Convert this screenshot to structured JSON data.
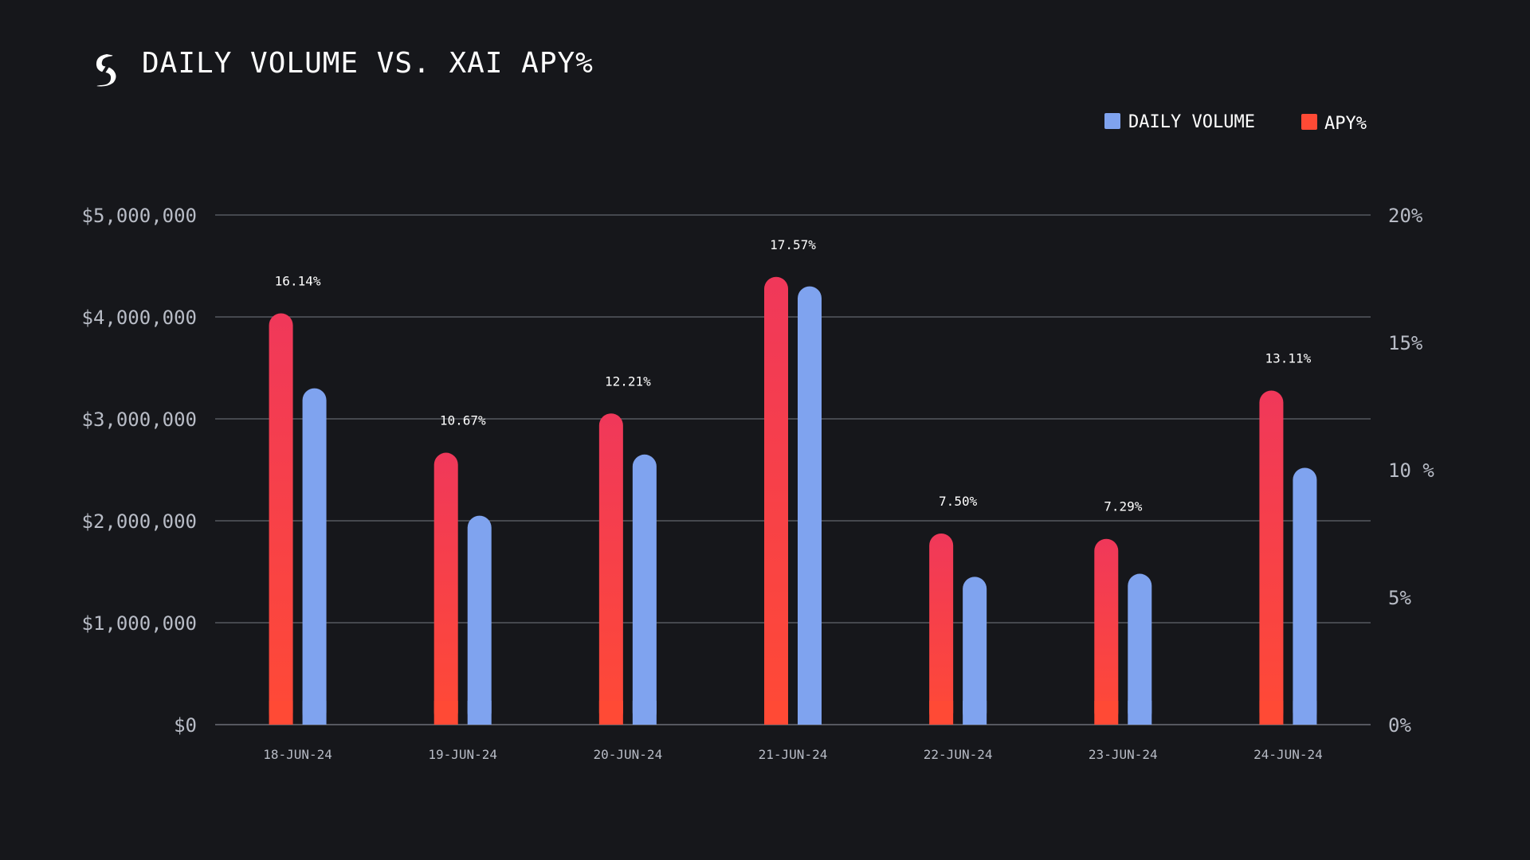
{
  "chart_data": {
    "type": "bar",
    "title": "DAILY VOLUME VS. XAI APY%",
    "categories": [
      "18-JUN-24",
      "19-JUN-24",
      "20-JUN-24",
      "21-JUN-24",
      "22-JUN-24",
      "23-JUN-24",
      "24-JUN-24"
    ],
    "series": [
      {
        "name": "APY%",
        "axis": "right",
        "color": "#f0385a",
        "color_bottom": "#ff4a35",
        "values": [
          16.14,
          10.67,
          12.21,
          17.57,
          7.5,
          7.29,
          13.11
        ],
        "data_labels": [
          "16.14%",
          "10.67%",
          "12.21%",
          "17.57%",
          "7.50%",
          "7.29%",
          "13.11%"
        ]
      },
      {
        "name": "DAILY VOLUME",
        "axis": "left",
        "color": "#7fa3ef",
        "values": [
          3300000,
          2050000,
          2650000,
          4300000,
          1450000,
          1480000,
          2520000
        ]
      }
    ],
    "y_left": {
      "ylim": [
        0,
        5000000
      ],
      "ticks": [
        0,
        1000000,
        2000000,
        3000000,
        4000000,
        5000000
      ],
      "tick_labels": [
        "$0",
        "$1,000,000",
        "$2,000,000",
        "$3,000,000",
        "$4,000,000",
        "$5,000,000"
      ]
    },
    "y_right": {
      "ylim": [
        0,
        20
      ],
      "ticks": [
        0,
        5,
        10,
        15,
        20
      ],
      "tick_labels": [
        "0%",
        "5%",
        "10 %",
        "15%",
        "20%"
      ]
    },
    "legend": {
      "position": "top-right",
      "items": [
        {
          "label": "DAILY VOLUME",
          "color": "#7fa3ef"
        },
        {
          "label": "APY%",
          "color": "#ff4a35"
        }
      ]
    },
    "grid": true
  },
  "logo": {
    "glyph": "S",
    "color": "#ffffff"
  }
}
